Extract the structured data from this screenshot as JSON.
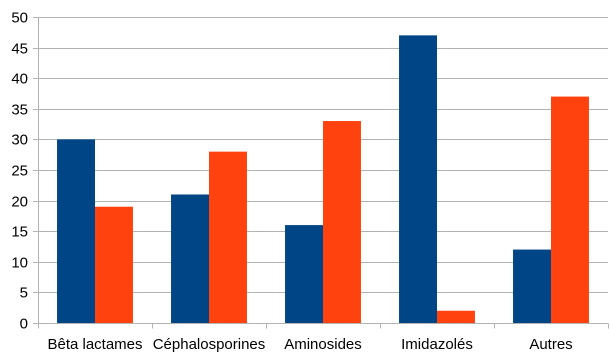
{
  "chart_data": {
    "type": "bar",
    "categories": [
      "Bêta lactames",
      "Céphalosporines",
      "Aminosides",
      "Imidazolés",
      "Autres"
    ],
    "series": [
      {
        "values": [
          30,
          21,
          16,
          47,
          12
        ],
        "color": "#004586"
      },
      {
        "values": [
          19,
          28,
          33,
          2,
          37
        ],
        "color": "#ff420e"
      }
    ],
    "ylim": [
      0,
      50
    ],
    "yticks": [
      0,
      5,
      10,
      15,
      20,
      25,
      30,
      35,
      40,
      45,
      50
    ],
    "grid": true,
    "legend": "none"
  }
}
